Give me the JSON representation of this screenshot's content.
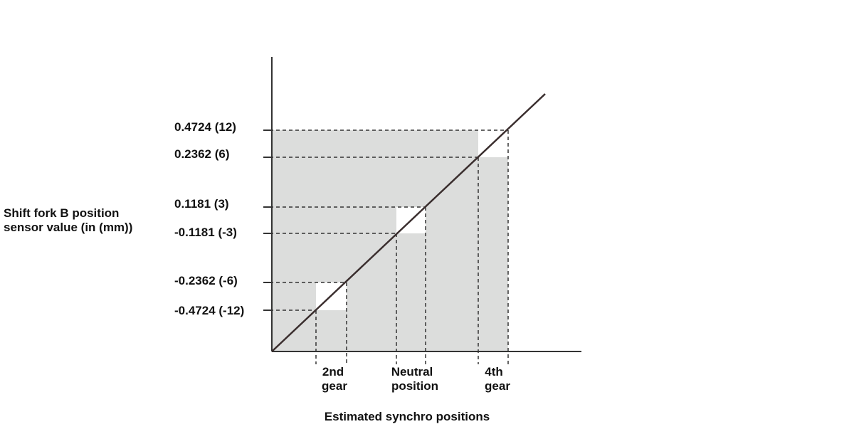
{
  "y_axis_title": {
    "lines": [
      "Shift fork B position",
      "sensor value (in (mm))"
    ]
  },
  "x_axis_title": "Estimated synchro positions",
  "y_labels": [
    "0.4724 (12)",
    "0.2362 (6)",
    "0.1181 (3)",
    "-0.1181 (-3)",
    "-0.2362 (-6)",
    "-0.4724 (-12)"
  ],
  "x_labels": [
    {
      "lines": [
        "2nd",
        "gear"
      ]
    },
    {
      "lines": [
        "Neutral",
        "position"
      ]
    },
    {
      "lines": [
        "4th",
        "gear"
      ]
    }
  ]
}
